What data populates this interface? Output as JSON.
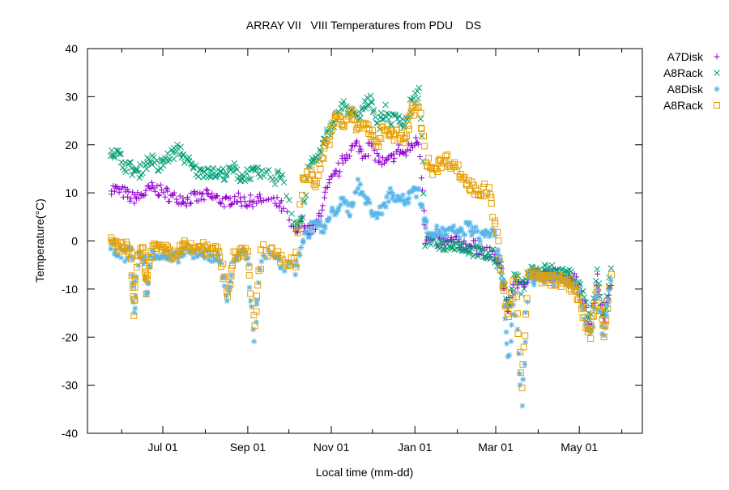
{
  "chart_data": {
    "type": "scatter",
    "title": "ARRAY VII   VIII Temperatures from PDU    DS",
    "xlabel": "Local time (mm-dd)",
    "ylabel": "Temperature(°C)",
    "x_units": "days since Jun 01",
    "xlim": [
      -25,
      380
    ],
    "ylim": [
      -40,
      40
    ],
    "yticks": [
      -40,
      -30,
      -20,
      -10,
      0,
      10,
      20,
      30,
      40
    ],
    "xticks": [
      {
        "day": 30,
        "label": "Jul 01"
      },
      {
        "day": 92,
        "label": "Sep 01"
      },
      {
        "day": 153,
        "label": "Nov 01"
      },
      {
        "day": 214,
        "label": "Jan 01"
      },
      {
        "day": 273,
        "label": "Mar 01"
      },
      {
        "day": 334,
        "label": "May 01"
      }
    ],
    "minor_xticks": [
      0,
      61,
      122,
      183,
      245,
      304,
      365
    ],
    "legend_position": "outside-top-right",
    "grid": false,
    "series": [
      {
        "name": "A7Disk",
        "marker": "plus",
        "color": "#9400d3",
        "points": [
          [
            -8,
            11
          ],
          [
            -3,
            10.5
          ],
          [
            2,
            10
          ],
          [
            7,
            9
          ],
          [
            12,
            9
          ],
          [
            17,
            10
          ],
          [
            22,
            11
          ],
          [
            27,
            10.5
          ],
          [
            32,
            10
          ],
          [
            37,
            9
          ],
          [
            42,
            9
          ],
          [
            47,
            8.5
          ],
          [
            52,
            9
          ],
          [
            57,
            9
          ],
          [
            62,
            9.5
          ],
          [
            67,
            9
          ],
          [
            72,
            8.5
          ],
          [
            77,
            8
          ],
          [
            82,
            9
          ],
          [
            87,
            8.5
          ],
          [
            92,
            8
          ],
          [
            97,
            8.5
          ],
          [
            102,
            8.5
          ],
          [
            112,
            8
          ],
          [
            117,
            7
          ],
          [
            127,
            1
          ],
          [
            132,
            4
          ],
          [
            137,
            2
          ],
          [
            142,
            3
          ],
          [
            147,
            8
          ],
          [
            152,
            12
          ],
          [
            157,
            14
          ],
          [
            162,
            17
          ],
          [
            167,
            19
          ],
          [
            172,
            20
          ],
          [
            177,
            18
          ],
          [
            182,
            20
          ],
          [
            187,
            17
          ],
          [
            192,
            16
          ],
          [
            197,
            17
          ],
          [
            202,
            19
          ],
          [
            207,
            18
          ],
          [
            212,
            20
          ],
          [
            217,
            21
          ],
          [
            222,
            0.5
          ],
          [
            227,
            0
          ],
          [
            232,
            0
          ],
          [
            237,
            -0.5
          ],
          [
            242,
            0
          ],
          [
            247,
            -0.5
          ],
          [
            252,
            -1
          ],
          [
            257,
            -1
          ],
          [
            262,
            -2
          ],
          [
            267,
            -2.5
          ],
          [
            272,
            -3
          ],
          [
            277,
            -6
          ],
          [
            282,
            -15
          ],
          [
            287,
            -8
          ],
          [
            292,
            -10
          ],
          [
            297,
            -7
          ],
          [
            302,
            -7
          ],
          [
            307,
            -7.5
          ],
          [
            312,
            -7
          ],
          [
            317,
            -7
          ],
          [
            322,
            -7
          ],
          [
            327,
            -7.5
          ],
          [
            332,
            -8
          ],
          [
            337,
            -12
          ],
          [
            342,
            -18
          ],
          [
            347,
            -8
          ],
          [
            352,
            -17
          ],
          [
            357,
            -8
          ]
        ]
      },
      {
        "name": "A8Rack",
        "marker": "cross",
        "color": "#009e73",
        "points": [
          [
            -8,
            19
          ],
          [
            -3,
            18
          ],
          [
            2,
            16
          ],
          [
            7,
            15
          ],
          [
            12,
            14
          ],
          [
            17,
            16
          ],
          [
            22,
            17
          ],
          [
            27,
            15
          ],
          [
            32,
            17
          ],
          [
            37,
            18
          ],
          [
            42,
            19
          ],
          [
            47,
            17
          ],
          [
            52,
            15
          ],
          [
            57,
            14
          ],
          [
            62,
            15
          ],
          [
            67,
            14
          ],
          [
            72,
            14
          ],
          [
            77,
            14
          ],
          [
            82,
            15
          ],
          [
            87,
            13
          ],
          [
            92,
            14
          ],
          [
            97,
            14
          ],
          [
            102,
            14
          ],
          [
            112,
            13
          ],
          [
            117,
            14
          ],
          [
            127,
            3
          ],
          [
            132,
            5
          ],
          [
            137,
            16
          ],
          [
            142,
            17
          ],
          [
            147,
            20
          ],
          [
            152,
            23
          ],
          [
            157,
            26
          ],
          [
            162,
            28
          ],
          [
            167,
            27
          ],
          [
            172,
            25
          ],
          [
            177,
            28
          ],
          [
            182,
            30
          ],
          [
            187,
            24
          ],
          [
            192,
            27
          ],
          [
            197,
            25
          ],
          [
            202,
            26
          ],
          [
            207,
            24
          ],
          [
            212,
            29
          ],
          [
            217,
            31
          ],
          [
            222,
            0
          ],
          [
            227,
            0
          ],
          [
            232,
            -0.5
          ],
          [
            237,
            -1
          ],
          [
            242,
            -0.5
          ],
          [
            247,
            -1
          ],
          [
            252,
            -1.5
          ],
          [
            257,
            -2
          ],
          [
            262,
            -2.5
          ],
          [
            267,
            -3
          ],
          [
            272,
            -3
          ],
          [
            277,
            -6
          ],
          [
            282,
            -14
          ],
          [
            287,
            -7
          ],
          [
            292,
            -10
          ],
          [
            297,
            -6
          ],
          [
            302,
            -6.5
          ],
          [
            307,
            -6
          ],
          [
            312,
            -6
          ],
          [
            317,
            -6.5
          ],
          [
            322,
            -6.5
          ],
          [
            327,
            -7
          ],
          [
            332,
            -8
          ],
          [
            337,
            -12
          ],
          [
            342,
            -18
          ],
          [
            347,
            -7
          ],
          [
            352,
            -16
          ],
          [
            357,
            -7
          ]
        ]
      },
      {
        "name": "A8Disk",
        "marker": "star",
        "color": "#56b4e9",
        "points": [
          [
            -8,
            -1
          ],
          [
            -3,
            -2
          ],
          [
            2,
            -3
          ],
          [
            7,
            -2
          ],
          [
            9,
            -15
          ],
          [
            12,
            -3
          ],
          [
            17,
            -4
          ],
          [
            18,
            -11
          ],
          [
            22,
            -2
          ],
          [
            27,
            -3
          ],
          [
            32,
            -3
          ],
          [
            37,
            -4
          ],
          [
            42,
            -3
          ],
          [
            47,
            -2
          ],
          [
            52,
            -3
          ],
          [
            57,
            -2
          ],
          [
            62,
            -3
          ],
          [
            67,
            -3
          ],
          [
            72,
            -4
          ],
          [
            77,
            -12
          ],
          [
            82,
            -4
          ],
          [
            87,
            -3
          ],
          [
            92,
            -3
          ],
          [
            97,
            -20
          ],
          [
            102,
            -3
          ],
          [
            112,
            -3
          ],
          [
            117,
            -5
          ],
          [
            127,
            -6
          ],
          [
            132,
            0
          ],
          [
            137,
            2
          ],
          [
            142,
            4
          ],
          [
            147,
            2
          ],
          [
            152,
            5
          ],
          [
            157,
            7
          ],
          [
            162,
            8
          ],
          [
            167,
            6
          ],
          [
            172,
            12
          ],
          [
            177,
            9
          ],
          [
            182,
            7
          ],
          [
            187,
            5
          ],
          [
            192,
            8
          ],
          [
            197,
            10
          ],
          [
            202,
            9
          ],
          [
            207,
            8
          ],
          [
            212,
            11
          ],
          [
            217,
            10
          ],
          [
            222,
            3
          ],
          [
            227,
            2
          ],
          [
            232,
            2
          ],
          [
            237,
            1.5
          ],
          [
            242,
            2
          ],
          [
            247,
            1.5
          ],
          [
            252,
            3
          ],
          [
            257,
            2
          ],
          [
            262,
            1
          ],
          [
            267,
            2
          ],
          [
            272,
            1
          ],
          [
            277,
            -6
          ],
          [
            282,
            -25
          ],
          [
            287,
            -12
          ],
          [
            292,
            -34
          ],
          [
            297,
            -7
          ],
          [
            302,
            -8
          ],
          [
            307,
            -7.5
          ],
          [
            312,
            -7.5
          ],
          [
            317,
            -8
          ],
          [
            322,
            -8
          ],
          [
            327,
            -8.5
          ],
          [
            332,
            -9
          ],
          [
            337,
            -14
          ],
          [
            342,
            -20
          ],
          [
            347,
            -10
          ],
          [
            352,
            -20
          ],
          [
            357,
            -9
          ]
        ]
      },
      {
        "name": "A8Rack",
        "marker": "square",
        "color": "#e69f00",
        "points": [
          [
            -8,
            0
          ],
          [
            -3,
            -1
          ],
          [
            2,
            -1
          ],
          [
            7,
            -3
          ],
          [
            9,
            -15
          ],
          [
            12,
            -2
          ],
          [
            17,
            -3
          ],
          [
            18,
            -10
          ],
          [
            22,
            -1
          ],
          [
            27,
            -2
          ],
          [
            32,
            -2
          ],
          [
            37,
            -3
          ],
          [
            42,
            -2
          ],
          [
            47,
            -1
          ],
          [
            52,
            -2
          ],
          [
            57,
            -1
          ],
          [
            62,
            -2
          ],
          [
            67,
            -2
          ],
          [
            72,
            -3
          ],
          [
            77,
            -11
          ],
          [
            82,
            -3
          ],
          [
            87,
            -2
          ],
          [
            92,
            -2
          ],
          [
            97,
            -18
          ],
          [
            102,
            -2
          ],
          [
            112,
            -2
          ],
          [
            117,
            -4
          ],
          [
            127,
            -5
          ],
          [
            132,
            13
          ],
          [
            137,
            14
          ],
          [
            142,
            12
          ],
          [
            147,
            18
          ],
          [
            152,
            22
          ],
          [
            157,
            26
          ],
          [
            162,
            24
          ],
          [
            167,
            27
          ],
          [
            172,
            23
          ],
          [
            177,
            25
          ],
          [
            182,
            22
          ],
          [
            187,
            20
          ],
          [
            192,
            24
          ],
          [
            197,
            22
          ],
          [
            202,
            22
          ],
          [
            207,
            21
          ],
          [
            212,
            27
          ],
          [
            217,
            28
          ],
          [
            222,
            17
          ],
          [
            227,
            15
          ],
          [
            232,
            16
          ],
          [
            237,
            17
          ],
          [
            242,
            16
          ],
          [
            247,
            14
          ],
          [
            252,
            12
          ],
          [
            257,
            11
          ],
          [
            262,
            10
          ],
          [
            267,
            11
          ],
          [
            272,
            5
          ],
          [
            277,
            -7
          ],
          [
            282,
            -16
          ],
          [
            287,
            -8
          ],
          [
            292,
            -30
          ],
          [
            297,
            -7
          ],
          [
            302,
            -7
          ],
          [
            307,
            -8
          ],
          [
            312,
            -8
          ],
          [
            317,
            -8
          ],
          [
            322,
            -8.5
          ],
          [
            327,
            -9
          ],
          [
            332,
            -10
          ],
          [
            337,
            -16
          ],
          [
            342,
            -20
          ],
          [
            347,
            -10
          ],
          [
            352,
            -20
          ],
          [
            357,
            -8
          ]
        ]
      }
    ]
  }
}
